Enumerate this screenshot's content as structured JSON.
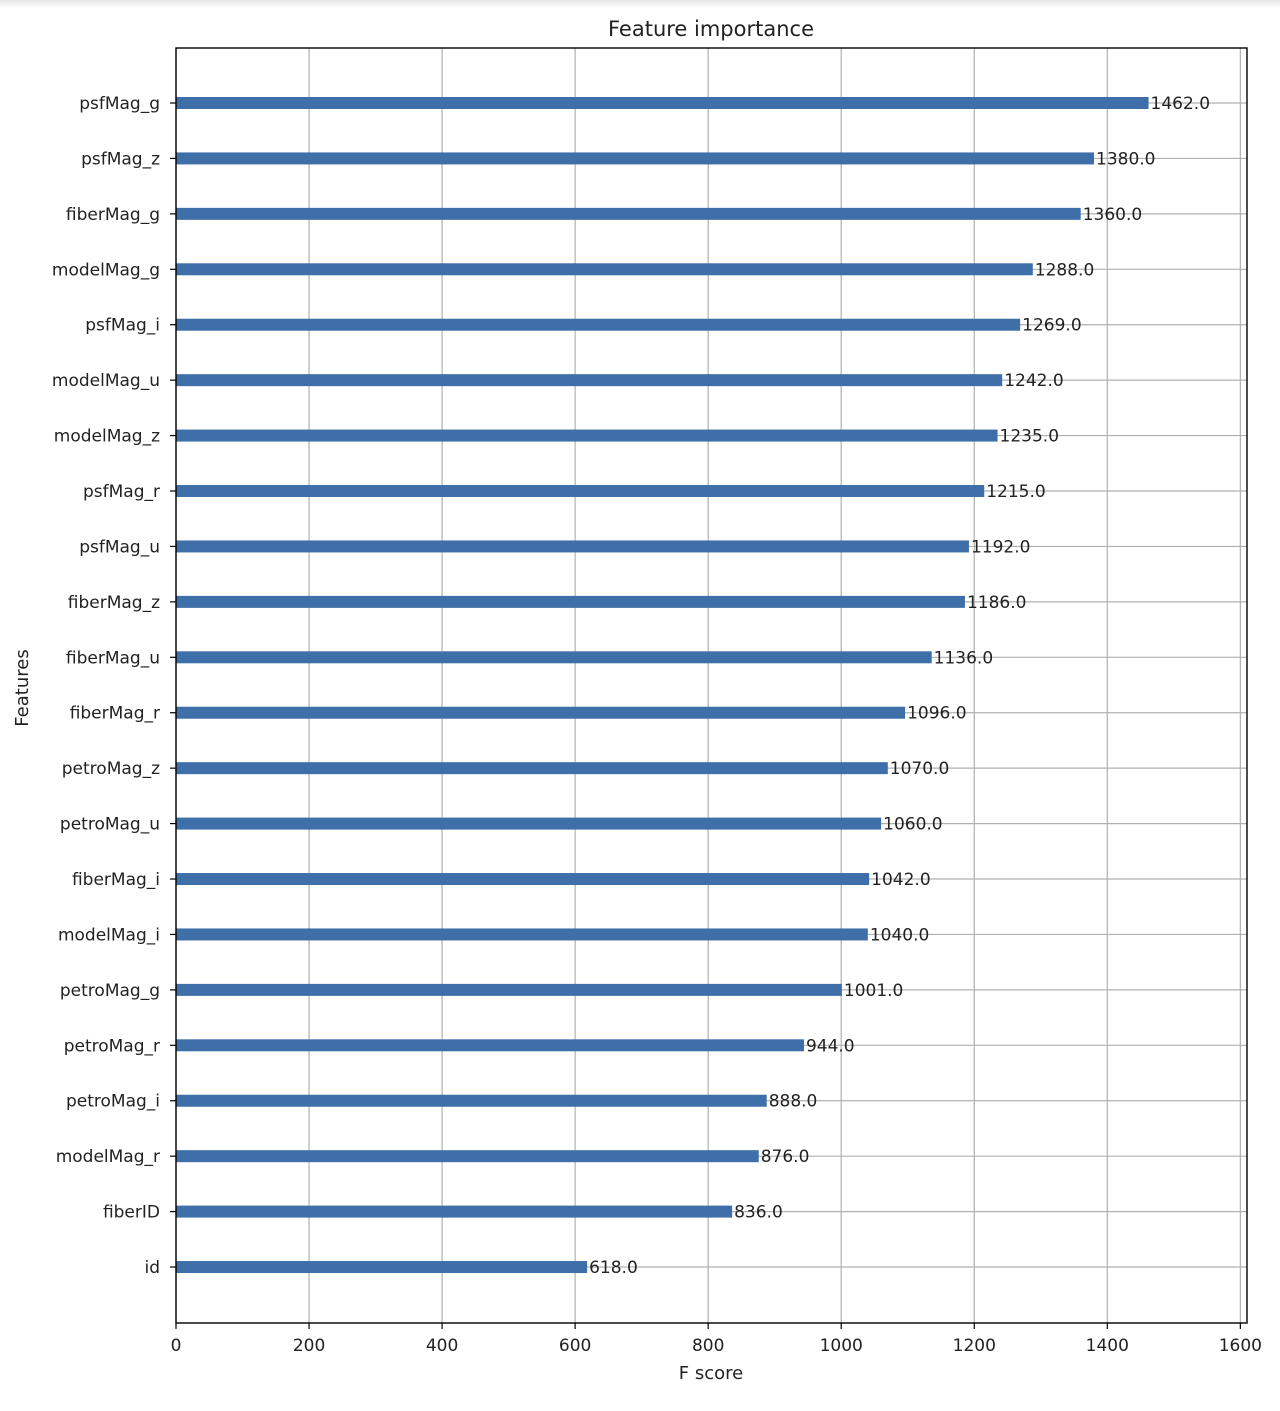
{
  "chart_data": {
    "type": "bar",
    "orientation": "horizontal",
    "title": "Feature importance",
    "xlabel": "F score",
    "ylabel": "Features",
    "xlim": [
      0,
      1610
    ],
    "xticks": [
      0,
      200,
      400,
      600,
      800,
      1000,
      1200,
      1400,
      1600
    ],
    "grid": true,
    "bar_color": "#3f6fa8",
    "categories": [
      "psfMag_g",
      "psfMag_z",
      "fiberMag_g",
      "modelMag_g",
      "psfMag_i",
      "modelMag_u",
      "modelMag_z",
      "psfMag_r",
      "psfMag_u",
      "fiberMag_z",
      "fiberMag_u",
      "fiberMag_r",
      "petroMag_z",
      "petroMag_u",
      "fiberMag_i",
      "modelMag_i",
      "petroMag_g",
      "petroMag_r",
      "petroMag_i",
      "modelMag_r",
      "fiberID",
      "id"
    ],
    "values": [
      1462,
      1380,
      1360,
      1288,
      1269,
      1242,
      1235,
      1215,
      1192,
      1186,
      1136,
      1096,
      1070,
      1060,
      1042,
      1040,
      1001,
      944,
      888,
      876,
      836,
      618
    ],
    "value_labels": [
      "1462.0",
      "1380.0",
      "1360.0",
      "1288.0",
      "1269.0",
      "1242.0",
      "1235.0",
      "1215.0",
      "1192.0",
      "1186.0",
      "1136.0",
      "1096.0",
      "1070.0",
      "1060.0",
      "1042.0",
      "1040.0",
      "1001.0",
      "944.0",
      "888.0",
      "876.0",
      "836.0",
      "618.0"
    ]
  }
}
